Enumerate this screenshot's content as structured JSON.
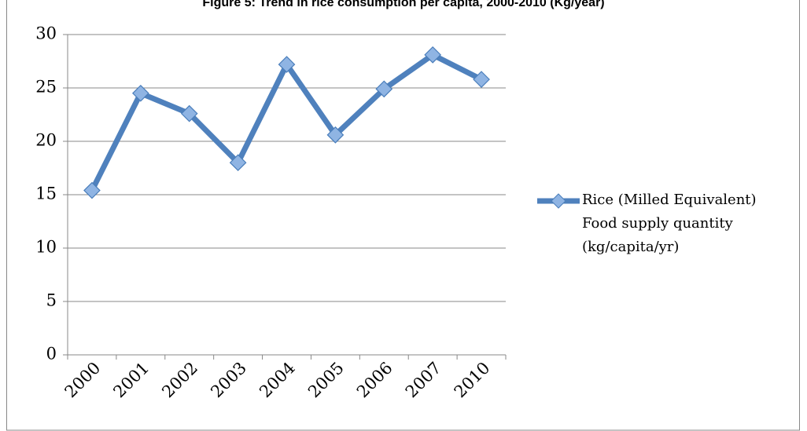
{
  "chart_data": {
    "type": "line",
    "title": "Figure 5: Trend in rice consumption per capita, 2000-2010 (Kg/year)",
    "categories": [
      "2000",
      "2001",
      "2002",
      "2003",
      "2004",
      "2005",
      "2006",
      "2007",
      "2010"
    ],
    "series": [
      {
        "name": "Rice (Milled Equivalent) Food supply quantity (kg/capita/yr)",
        "color": "#4f81bd",
        "values": [
          15.4,
          24.5,
          22.6,
          18.0,
          27.2,
          20.6,
          24.9,
          28.1,
          25.8
        ]
      }
    ],
    "ylim": [
      0,
      30
    ],
    "yticks": [
      0,
      5,
      10,
      15,
      20,
      25,
      30
    ],
    "grid": true,
    "legend": "right"
  }
}
